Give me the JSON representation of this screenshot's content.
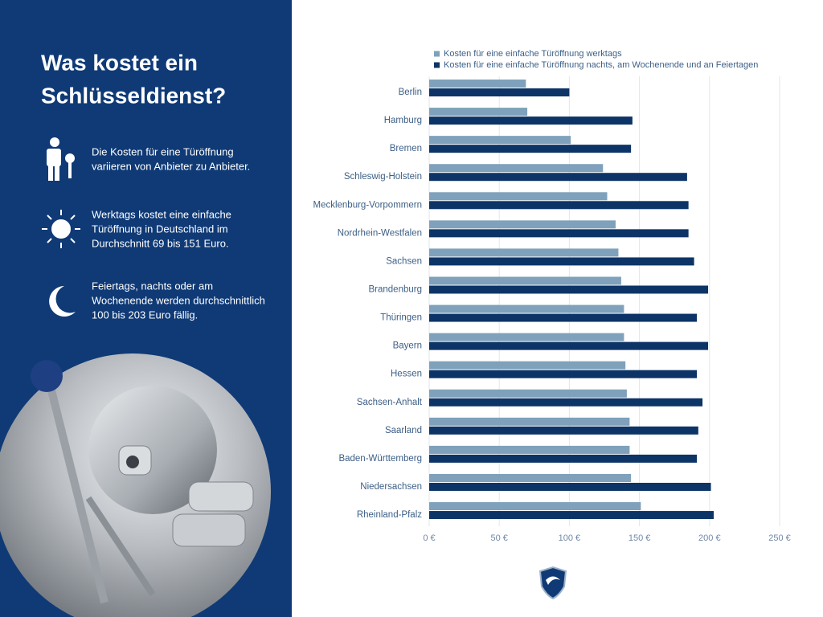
{
  "sidebar": {
    "title": [
      "Was kostet ein",
      "Schlüsseldienst?"
    ],
    "items": [
      [
        "Die Kosten für eine Türöffnung",
        "variieren von Anbieter zu Anbieter."
      ],
      [
        "Werktags kostet eine einfache",
        "Türöffnung in Deutschland im",
        "Durchschnitt 69 bis 151 Euro."
      ],
      [
        "Feiertags, nachts oder am",
        "Wochenende werden durchschnittlich",
        "100 bis 203 Euro fällig."
      ]
    ]
  },
  "chart_data": {
    "type": "bar",
    "orientation": "horizontal",
    "categories": [
      "Berlin",
      "Hamburg",
      "Bremen",
      "Schleswig-Holstein",
      "Mecklenburg-Vorpommern",
      "Nordrhein-Westfalen",
      "Sachsen",
      "Brandenburg",
      "Thüringen",
      "Bayern",
      "Hessen",
      "Sachsen-Anhalt",
      "Saarland",
      "Baden-Württemberg",
      "Niedersachsen",
      "Rheinland-Pfalz"
    ],
    "series": [
      {
        "name": "Kosten für eine einfache Türöffnung werktags",
        "color": "#7fa1bb",
        "values": [
          69,
          70,
          101,
          124,
          127,
          133,
          135,
          137,
          139,
          139,
          140,
          141,
          143,
          143,
          144,
          151
        ]
      },
      {
        "name": "Kosten für eine einfache Türöffnung nachts, am Wochenende und an Feiertagen",
        "color": "#0d3466",
        "values": [
          100,
          145,
          144,
          184,
          185,
          185,
          189,
          199,
          191,
          199,
          191,
          195,
          192,
          191,
          201,
          203
        ]
      }
    ],
    "xlim": [
      0,
      250
    ],
    "xticks": [
      {
        "value": 0,
        "label": "0 €"
      },
      {
        "value": 50,
        "label": "50 €"
      },
      {
        "value": 100,
        "label": "100 €"
      },
      {
        "value": 150,
        "label": "150 €"
      },
      {
        "value": 200,
        "label": "200 €"
      },
      {
        "value": 250,
        "label": "250 €"
      }
    ],
    "grid": true,
    "legend": "top"
  }
}
